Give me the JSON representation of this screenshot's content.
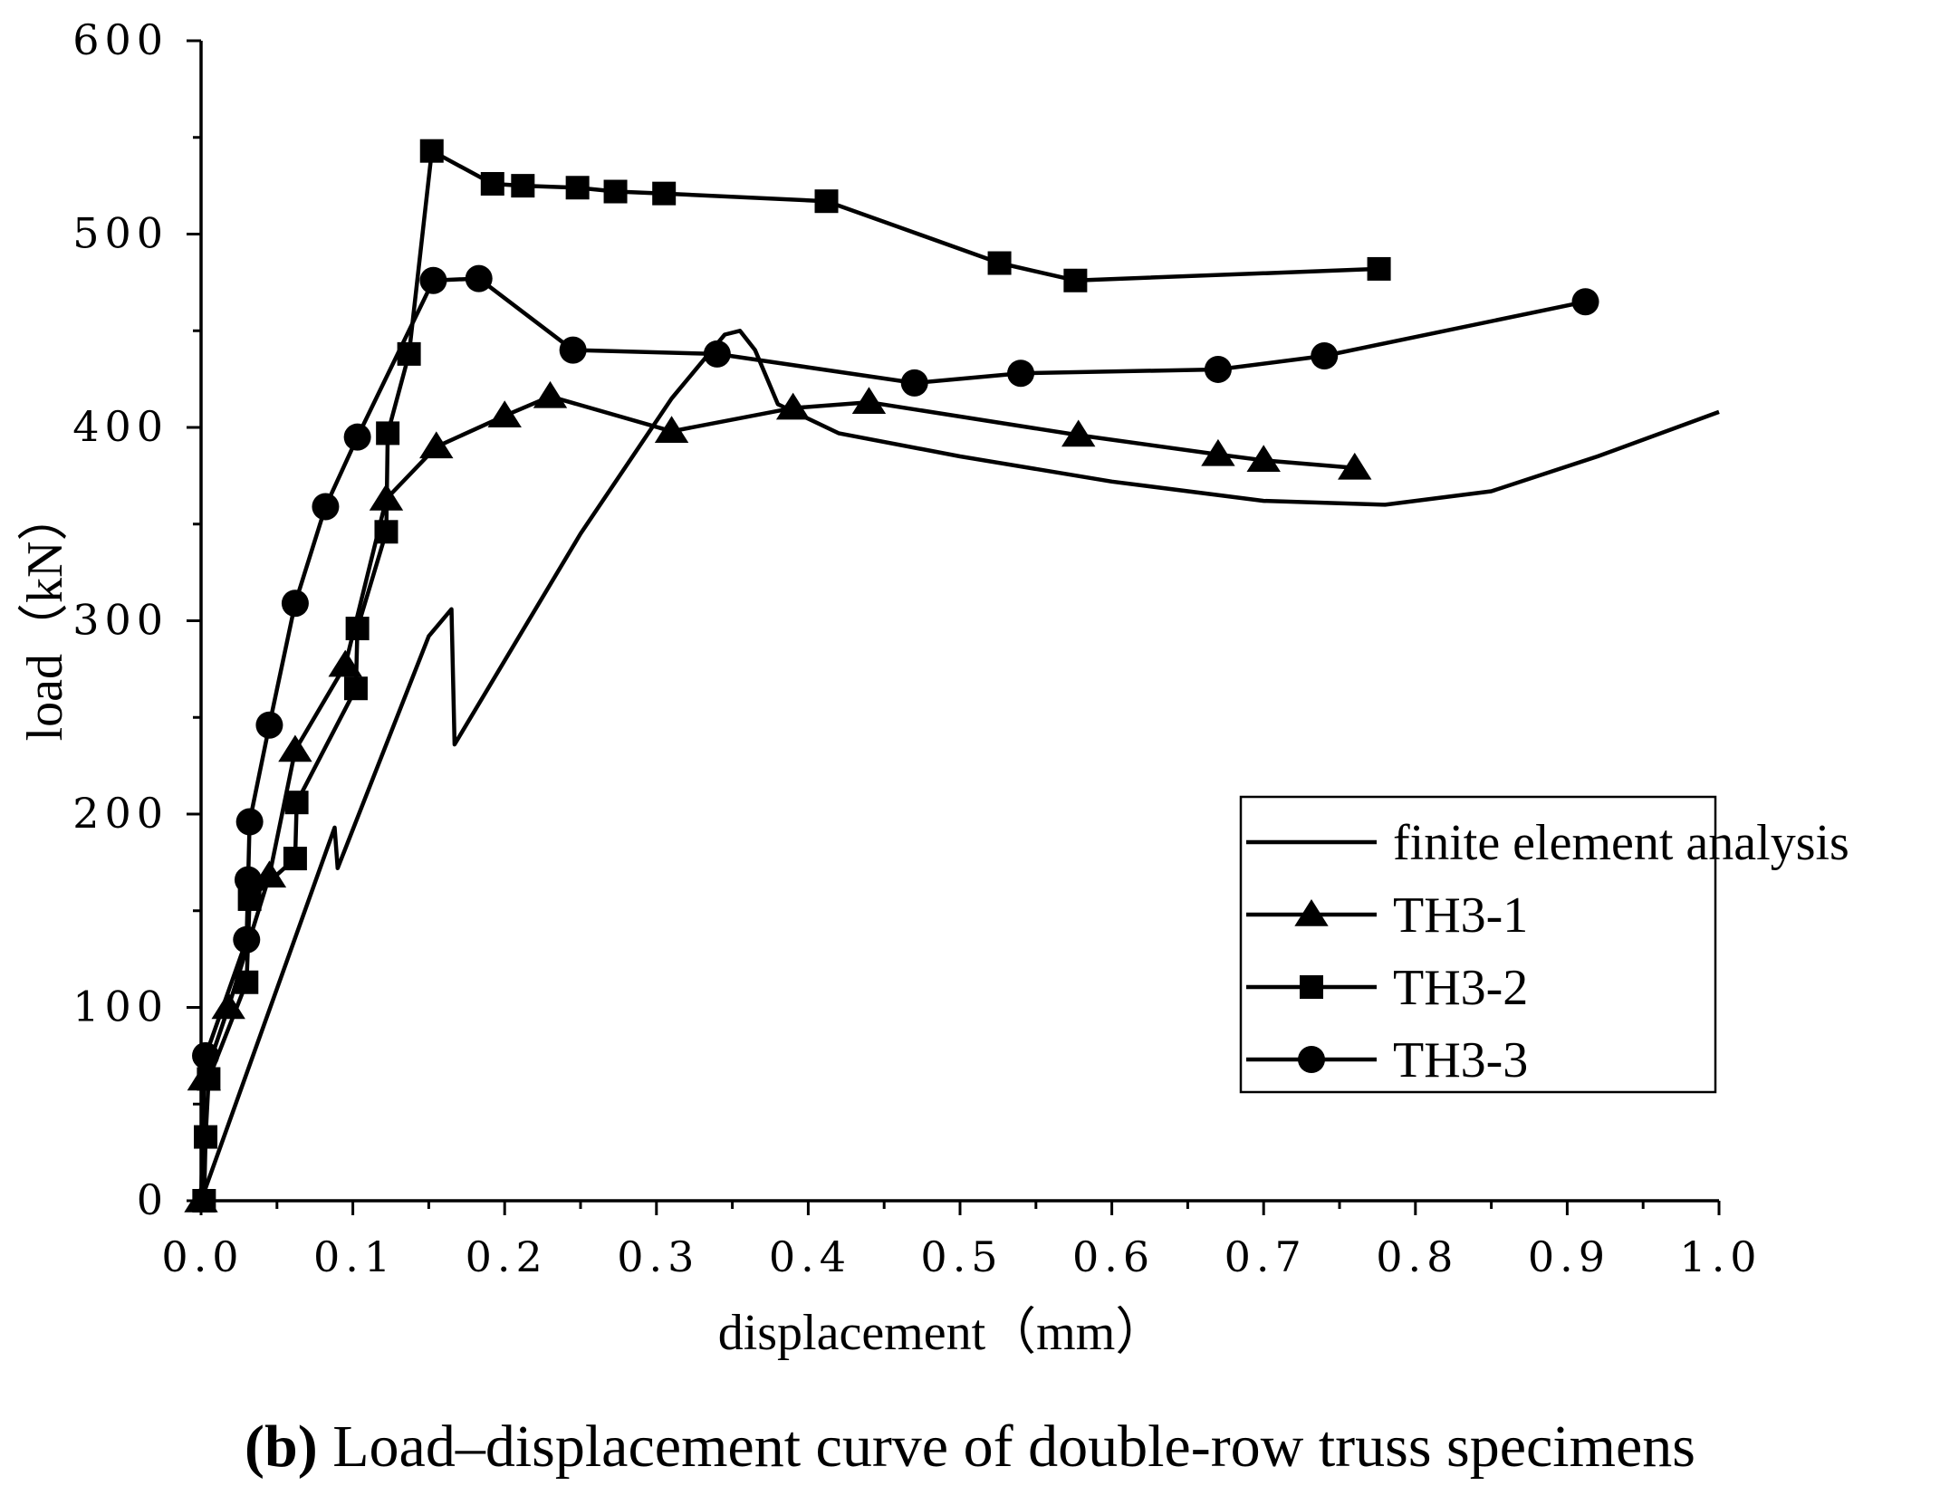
{
  "chart_data": {
    "type": "line",
    "xlabel": "displacement（mm）",
    "ylabel": "load（kN）",
    "xlim": [
      0,
      1.0
    ],
    "ylim": [
      0,
      600
    ],
    "x_ticks": [
      0.0,
      0.1,
      0.2,
      0.3,
      0.4,
      0.5,
      0.6,
      0.7,
      0.8,
      0.9,
      1.0
    ],
    "x_tick_labels": [
      "0.0",
      "0.1",
      "0.2",
      "0.3",
      "0.4",
      "0.5",
      "0.6",
      "0.7",
      "0.8",
      "0.9",
      "1.0"
    ],
    "y_ticks": [
      0,
      100,
      200,
      300,
      400,
      500,
      600
    ],
    "y_tick_labels": [
      "0",
      "100",
      "200",
      "300",
      "400",
      "500",
      "600"
    ],
    "legend_position": "bottom-right",
    "series": [
      {
        "name": "finite element analysis",
        "marker": "none",
        "x": [
          0.0,
          0.088,
          0.09,
          0.15,
          0.165,
          0.167,
          0.25,
          0.31,
          0.345,
          0.355,
          0.365,
          0.38,
          0.42,
          0.5,
          0.6,
          0.7,
          0.78,
          0.85,
          0.92,
          1.0
        ],
        "y": [
          0,
          193,
          172,
          292,
          306,
          236,
          345,
          415,
          448,
          450,
          440,
          412,
          397,
          385,
          372,
          362,
          360,
          367,
          385,
          408
        ]
      },
      {
        "name": "TH3-1",
        "marker": "triangle",
        "x": [
          0.0,
          0.002,
          0.018,
          0.045,
          0.062,
          0.095,
          0.122,
          0.155,
          0.2,
          0.23,
          0.31,
          0.39,
          0.44,
          0.578,
          0.67,
          0.7,
          0.76
        ],
        "y": [
          0,
          63,
          100,
          168,
          233,
          277,
          363,
          390,
          406,
          416,
          398,
          410,
          413,
          396,
          386,
          383,
          379
        ]
      },
      {
        "name": "TH3-2",
        "marker": "square",
        "x": [
          0.002,
          0.003,
          0.005,
          0.03,
          0.032,
          0.062,
          0.063,
          0.102,
          0.103,
          0.122,
          0.123,
          0.137,
          0.152,
          0.192,
          0.212,
          0.248,
          0.273,
          0.305,
          0.412,
          0.526,
          0.576,
          0.776
        ],
        "y": [
          0,
          33,
          63,
          113,
          156,
          177,
          206,
          265,
          296,
          346,
          397,
          438,
          543,
          526,
          525,
          524,
          522,
          521,
          517,
          485,
          476,
          482
        ]
      },
      {
        "name": "TH3-3",
        "marker": "circle",
        "x": [
          0.003,
          0.03,
          0.031,
          0.032,
          0.045,
          0.062,
          0.082,
          0.103,
          0.153,
          0.183,
          0.245,
          0.34,
          0.47,
          0.54,
          0.67,
          0.74,
          0.912
        ],
        "y": [
          75,
          135,
          166,
          196,
          246,
          309,
          359,
          395,
          476,
          477,
          440,
          438,
          423,
          428,
          430,
          437,
          465
        ]
      }
    ]
  },
  "caption": {
    "letter": "(b)",
    "text": " Load–displacement curve of double-row truss specimens"
  }
}
